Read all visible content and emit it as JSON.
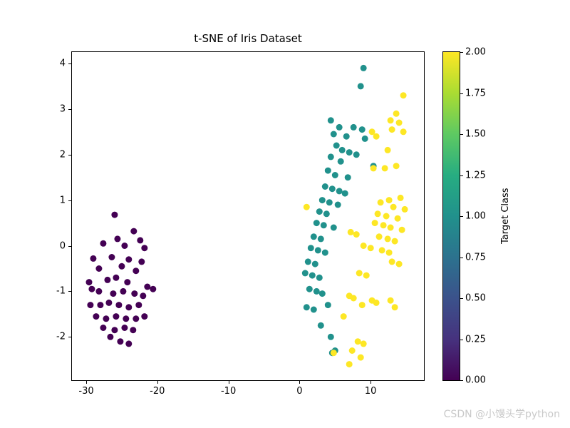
{
  "watermark": "CSDN @小馒头学python",
  "chart_data": {
    "type": "scatter",
    "title": "t-SNE of Iris Dataset",
    "xlabel": "",
    "ylabel": "",
    "xlim": [
      -32,
      17.5
    ],
    "ylim": [
      -2.95,
      4.25
    ],
    "xticks": [
      -30,
      -20,
      -10,
      0,
      10
    ],
    "yticks": [
      -2,
      -1,
      0,
      1,
      2,
      3,
      4
    ],
    "grid": false,
    "legend": "none (colorbar used)",
    "colorbar": {
      "label": "Target Class",
      "min": 0,
      "max": 2,
      "ticks": [
        "0.00",
        "0.25",
        "0.50",
        "0.75",
        "1.00",
        "1.25",
        "1.50",
        "1.75",
        "2.00"
      ],
      "colormap": "viridis",
      "gradient": [
        "#440154",
        "#46327e",
        "#3b528b",
        "#2c728e",
        "#21918c",
        "#27ad81",
        "#5ec962",
        "#aadc32",
        "#fde725"
      ]
    },
    "series": [
      {
        "name": "class 0",
        "target_value": 0,
        "color": "#440154",
        "points": [
          [
            -26.0,
            0.68
          ],
          [
            -23.3,
            0.32
          ],
          [
            -25.6,
            0.15
          ],
          [
            -22.4,
            0.12
          ],
          [
            -27.6,
            0.05
          ],
          [
            -24.6,
            0.0
          ],
          [
            -21.8,
            -0.05
          ],
          [
            -29.0,
            -0.28
          ],
          [
            -26.4,
            -0.25
          ],
          [
            -24.0,
            -0.3
          ],
          [
            -22.2,
            -0.35
          ],
          [
            -28.2,
            -0.5
          ],
          [
            -25.0,
            -0.45
          ],
          [
            -23.0,
            -0.55
          ],
          [
            -29.6,
            -0.8
          ],
          [
            -27.0,
            -0.75
          ],
          [
            -25.8,
            -0.7
          ],
          [
            -24.2,
            -0.8
          ],
          [
            -21.4,
            -0.9
          ],
          [
            -20.6,
            -0.95
          ],
          [
            -29.2,
            -0.95
          ],
          [
            -28.2,
            -1.0
          ],
          [
            -26.2,
            -1.05
          ],
          [
            -24.8,
            -1.0
          ],
          [
            -23.2,
            -1.05
          ],
          [
            -22.0,
            -1.1
          ],
          [
            -29.4,
            -1.3
          ],
          [
            -28.0,
            -1.3
          ],
          [
            -26.8,
            -1.25
          ],
          [
            -25.4,
            -1.3
          ],
          [
            -24.0,
            -1.35
          ],
          [
            -22.6,
            -1.3
          ],
          [
            -28.6,
            -1.55
          ],
          [
            -27.2,
            -1.6
          ],
          [
            -25.8,
            -1.55
          ],
          [
            -24.4,
            -1.6
          ],
          [
            -23.0,
            -1.6
          ],
          [
            -21.8,
            -1.55
          ],
          [
            -27.6,
            -1.8
          ],
          [
            -26.0,
            -1.85
          ],
          [
            -24.6,
            -1.8
          ],
          [
            -23.4,
            -1.85
          ],
          [
            -26.6,
            -2.0
          ],
          [
            -25.2,
            -2.1
          ],
          [
            -24.0,
            -2.15
          ]
        ]
      },
      {
        "name": "class 1",
        "target_value": 1,
        "color": "#21918c",
        "points": [
          [
            9.0,
            3.9
          ],
          [
            8.6,
            3.5
          ],
          [
            4.4,
            2.75
          ],
          [
            5.6,
            2.6
          ],
          [
            7.6,
            2.6
          ],
          [
            8.8,
            2.55
          ],
          [
            4.8,
            2.45
          ],
          [
            6.6,
            2.4
          ],
          [
            9.2,
            2.35
          ],
          [
            5.2,
            2.2
          ],
          [
            6.0,
            2.1
          ],
          [
            7.0,
            2.05
          ],
          [
            8.0,
            2.0
          ],
          [
            4.4,
            1.95
          ],
          [
            5.8,
            1.85
          ],
          [
            10.4,
            1.75
          ],
          [
            4.0,
            1.65
          ],
          [
            5.0,
            1.55
          ],
          [
            6.8,
            1.5
          ],
          [
            3.6,
            1.3
          ],
          [
            4.6,
            1.25
          ],
          [
            5.6,
            1.2
          ],
          [
            6.4,
            1.15
          ],
          [
            3.2,
            1.0
          ],
          [
            4.2,
            0.95
          ],
          [
            5.4,
            0.9
          ],
          [
            2.8,
            0.75
          ],
          [
            3.8,
            0.7
          ],
          [
            2.4,
            0.5
          ],
          [
            3.4,
            0.45
          ],
          [
            4.8,
            0.4
          ],
          [
            2.0,
            0.2
          ],
          [
            3.0,
            0.15
          ],
          [
            1.6,
            -0.05
          ],
          [
            2.6,
            -0.1
          ],
          [
            3.6,
            -0.15
          ],
          [
            1.2,
            -0.35
          ],
          [
            2.2,
            -0.4
          ],
          [
            0.8,
            -0.6
          ],
          [
            1.8,
            -0.65
          ],
          [
            2.8,
            -0.7
          ],
          [
            1.4,
            -0.95
          ],
          [
            2.4,
            -1.0
          ],
          [
            3.2,
            -1.05
          ],
          [
            1.0,
            -1.35
          ],
          [
            2.0,
            -1.4
          ],
          [
            4.0,
            -1.3
          ],
          [
            3.0,
            -1.75
          ],
          [
            4.4,
            -2.0
          ],
          [
            5.0,
            -2.3
          ],
          [
            4.6,
            -2.35
          ]
        ]
      },
      {
        "name": "class 2",
        "target_value": 2,
        "color": "#fde725",
        "points": [
          [
            14.6,
            3.3
          ],
          [
            13.6,
            2.9
          ],
          [
            12.8,
            2.75
          ],
          [
            14.0,
            2.7
          ],
          [
            13.0,
            2.55
          ],
          [
            14.6,
            2.5
          ],
          [
            10.2,
            2.5
          ],
          [
            10.8,
            2.4
          ],
          [
            12.4,
            2.1
          ],
          [
            13.6,
            1.75
          ],
          [
            12.0,
            1.7
          ],
          [
            10.4,
            1.7
          ],
          [
            14.2,
            1.05
          ],
          [
            12.6,
            1.0
          ],
          [
            11.4,
            0.95
          ],
          [
            13.2,
            0.85
          ],
          [
            14.8,
            0.8
          ],
          [
            1.0,
            0.85
          ],
          [
            11.0,
            0.7
          ],
          [
            12.2,
            0.65
          ],
          [
            13.8,
            0.6
          ],
          [
            10.6,
            0.5
          ],
          [
            11.8,
            0.45
          ],
          [
            12.8,
            0.4
          ],
          [
            14.4,
            0.35
          ],
          [
            7.2,
            0.3
          ],
          [
            8.0,
            0.25
          ],
          [
            11.2,
            0.2
          ],
          [
            12.4,
            0.15
          ],
          [
            13.4,
            0.1
          ],
          [
            9.0,
            0.0
          ],
          [
            10.0,
            -0.05
          ],
          [
            11.6,
            -0.1
          ],
          [
            12.6,
            -0.15
          ],
          [
            13.0,
            -0.35
          ],
          [
            14.0,
            -0.4
          ],
          [
            8.4,
            -0.6
          ],
          [
            9.4,
            -0.65
          ],
          [
            7.0,
            -1.1
          ],
          [
            7.6,
            -1.15
          ],
          [
            10.2,
            -1.2
          ],
          [
            10.8,
            -1.25
          ],
          [
            12.8,
            -1.2
          ],
          [
            8.8,
            -1.3
          ],
          [
            13.4,
            -1.35
          ],
          [
            6.2,
            -1.55
          ],
          [
            8.2,
            -2.1
          ],
          [
            9.0,
            -2.15
          ],
          [
            7.4,
            -2.3
          ],
          [
            4.8,
            -2.35
          ],
          [
            8.6,
            -2.45
          ],
          [
            7.0,
            -2.6
          ]
        ]
      }
    ]
  }
}
